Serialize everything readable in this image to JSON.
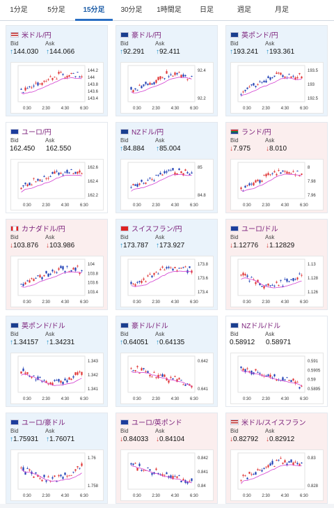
{
  "tabs": [
    {
      "label": "1分足",
      "active": false
    },
    {
      "label": "5分足",
      "active": false
    },
    {
      "label": "15分足",
      "active": true
    },
    {
      "label": "30分足",
      "active": false
    },
    {
      "label": "1時間足",
      "active": false
    },
    {
      "label": "日足",
      "active": false
    },
    {
      "label": "週足",
      "active": false
    },
    {
      "label": "月足",
      "active": false
    }
  ],
  "bid_label": "Bid",
  "ask_label": "Ask",
  "up_arrow": "↑",
  "down_arrow": "↓",
  "colors": {
    "bull": "#1f3fb5",
    "bear": "#e03434",
    "ma": "#d23dd0",
    "up_bg": "#eaf3fb",
    "down_bg": "#fbeeee"
  },
  "cards": [
    {
      "pair": "米ドル/円",
      "flag": "us-jp",
      "trend": "up",
      "bid": "144.030",
      "ask": "144.066",
      "time_labels": [
        "0:30",
        "2:30",
        "4:30",
        "6:30"
      ],
      "y_labels": [
        "144.2",
        "144",
        "143.8",
        "143.6",
        "143.4"
      ],
      "pattern": "rise"
    },
    {
      "pair": "豪ドル/円",
      "flag": "au-jp",
      "trend": "up",
      "bid": "92.291",
      "ask": "92.411",
      "time_labels": [
        "0:30",
        "2:30",
        "4:30",
        "6:30"
      ],
      "y_labels": [
        "92.4",
        "92.2"
      ],
      "pattern": "rise"
    },
    {
      "pair": "英ポンド/円",
      "flag": "gb-jp",
      "trend": "up",
      "bid": "193.241",
      "ask": "193.361",
      "time_labels": [
        "0:30",
        "2:30",
        "4:30",
        "6:30"
      ],
      "y_labels": [
        "193.5",
        "193",
        "192.5"
      ],
      "pattern": "rise"
    },
    {
      "pair": "ユーロ/円",
      "flag": "eu-jp",
      "trend": "flat",
      "bid": "162.450",
      "ask": "162.550",
      "time_labels": [
        "0:30",
        "2:30",
        "4:30",
        "6:30"
      ],
      "y_labels": [
        "162.6",
        "162.4",
        "162.2"
      ],
      "pattern": "rise"
    },
    {
      "pair": "NZドル/円",
      "flag": "nz-jp",
      "trend": "up",
      "bid": "84.884",
      "ask": "85.004",
      "time_labels": [
        "0:30",
        "2:30",
        "4:30",
        "6:30"
      ],
      "y_labels": [
        "85",
        "84.8"
      ],
      "pattern": "rise"
    },
    {
      "pair": "ランド/円",
      "flag": "za-jp",
      "trend": "down",
      "bid": "7.975",
      "ask": "8.010",
      "time_labels": [
        "0:30",
        "2:30",
        "4:30",
        "6:30"
      ],
      "y_labels": [
        "8",
        "7.98",
        "7.96"
      ],
      "pattern": "rise"
    },
    {
      "pair": "カナダドル/円",
      "flag": "ca-jp",
      "trend": "down",
      "bid": "103.876",
      "ask": "103.986",
      "time_labels": [
        "0:30",
        "2:30",
        "4:30",
        "6:30"
      ],
      "y_labels": [
        "104",
        "103.8",
        "103.6",
        "103.4"
      ],
      "pattern": "rise"
    },
    {
      "pair": "スイスフラン/円",
      "flag": "ch-jp",
      "trend": "up",
      "bid": "173.787",
      "ask": "173.927",
      "time_labels": [
        "0:30",
        "2:30",
        "4:30",
        "6:30"
      ],
      "y_labels": [
        "173.8",
        "173.6",
        "173.4"
      ],
      "pattern": "rise"
    },
    {
      "pair": "ユーロ/ドル",
      "flag": "eu-us",
      "trend": "down",
      "bid": "1.12776",
      "ask": "1.12829",
      "time_labels": [
        "0:30",
        "2:30",
        "4:30",
        "6:30"
      ],
      "y_labels": [
        "1.13",
        "1.128",
        "1.126"
      ],
      "pattern": "dip"
    },
    {
      "pair": "英ポンド/ドル",
      "flag": "gb-us",
      "trend": "up",
      "bid": "1.34157",
      "ask": "1.34231",
      "time_labels": [
        "0:30",
        "2:30",
        "4:30",
        "6:30"
      ],
      "y_labels": [
        "1.343",
        "1.342",
        "1.341"
      ],
      "pattern": "dip"
    },
    {
      "pair": "豪ドル/ドル",
      "flag": "au-us",
      "trend": "up",
      "bid": "0.64051",
      "ask": "0.64135",
      "time_labels": [
        "0:30",
        "2:30",
        "4:30",
        "6:30"
      ],
      "y_labels": [
        "0.642",
        "0.641"
      ],
      "pattern": "fall"
    },
    {
      "pair": "NZドル/ドル",
      "flag": "nz-us",
      "trend": "flat",
      "bid": "0.58912",
      "ask": "0.58971",
      "time_labels": [
        "0:30",
        "2:30",
        "4:30",
        "6:30"
      ],
      "y_labels": [
        "0.591",
        "0.5905",
        "0.59",
        "0.5895"
      ],
      "pattern": "fall"
    },
    {
      "pair": "ユーロ/豪ドル",
      "flag": "eu-au",
      "trend": "up",
      "bid": "1.75931",
      "ask": "1.76071",
      "time_labels": [
        "0:30",
        "2:30",
        "4:30",
        "6:30"
      ],
      "y_labels": [
        "1.76",
        "1.758"
      ],
      "pattern": "dip"
    },
    {
      "pair": "ユーロ/英ポンド",
      "flag": "eu-gb",
      "trend": "down",
      "bid": "0.84033",
      "ask": "0.84104",
      "time_labels": [
        "0:30",
        "2:30",
        "4:30",
        "6:30"
      ],
      "y_labels": [
        "0.842",
        "0.841",
        "0.84"
      ],
      "pattern": "fall"
    },
    {
      "pair": "米ドル/スイスフラン",
      "flag": "us-ch",
      "trend": "down",
      "bid": "0.82792",
      "ask": "0.82912",
      "time_labels": [
        "0:30",
        "2:30",
        "4:30",
        "6:30"
      ],
      "y_labels": [
        "0.83",
        "0.828"
      ],
      "pattern": "rise"
    }
  ]
}
